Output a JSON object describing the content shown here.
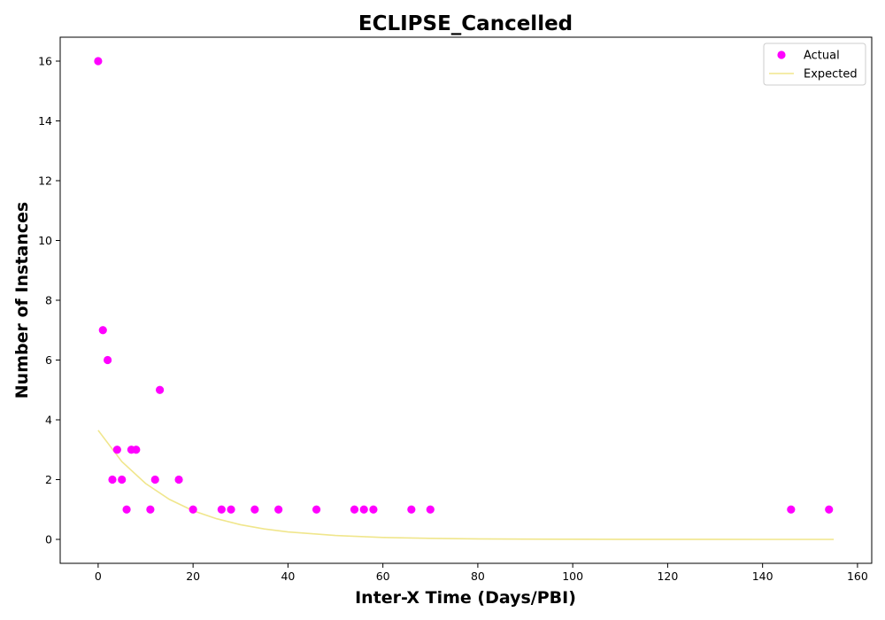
{
  "chart_data": {
    "type": "scatter",
    "title": "ECLIPSE_Cancelled",
    "xlabel": "Inter-X Time (Days/PBI)",
    "ylabel": "Number of Instances",
    "xlim": [
      -8,
      163
    ],
    "ylim": [
      -0.8,
      16.8
    ],
    "xticks": [
      0,
      20,
      40,
      60,
      80,
      100,
      120,
      140,
      160
    ],
    "yticks": [
      0,
      2,
      4,
      6,
      8,
      10,
      12,
      14,
      16
    ],
    "grid": false,
    "legend": "top-right",
    "series": [
      {
        "name": "Actual",
        "kind": "scatter",
        "color": "#ff00ff",
        "points": [
          [
            0,
            16
          ],
          [
            1,
            7
          ],
          [
            2,
            6
          ],
          [
            3,
            2
          ],
          [
            4,
            3
          ],
          [
            5,
            2
          ],
          [
            6,
            1
          ],
          [
            7,
            3
          ],
          [
            8,
            3
          ],
          [
            11,
            1
          ],
          [
            12,
            2
          ],
          [
            13,
            5
          ],
          [
            17,
            2
          ],
          [
            20,
            1
          ],
          [
            26,
            1
          ],
          [
            28,
            1
          ],
          [
            33,
            1
          ],
          [
            38,
            1
          ],
          [
            46,
            1
          ],
          [
            54,
            1
          ],
          [
            56,
            1
          ],
          [
            58,
            1
          ],
          [
            66,
            1
          ],
          [
            70,
            1
          ],
          [
            146,
            1
          ],
          [
            154,
            1
          ]
        ]
      },
      {
        "name": "Expected",
        "kind": "line",
        "color": "#f0e68c",
        "points": [
          [
            0,
            3.65
          ],
          [
            5,
            2.6
          ],
          [
            10,
            1.87
          ],
          [
            15,
            1.34
          ],
          [
            20,
            0.96
          ],
          [
            25,
            0.69
          ],
          [
            30,
            0.49
          ],
          [
            35,
            0.35
          ],
          [
            40,
            0.25
          ],
          [
            50,
            0.13
          ],
          [
            60,
            0.066
          ],
          [
            70,
            0.034
          ],
          [
            80,
            0.017
          ],
          [
            90,
            0.009
          ],
          [
            100,
            0.005
          ],
          [
            110,
            0.002
          ],
          [
            120,
            0.001
          ],
          [
            130,
            0.0006
          ],
          [
            140,
            0.0003
          ],
          [
            155,
            0.0001
          ]
        ]
      }
    ]
  }
}
